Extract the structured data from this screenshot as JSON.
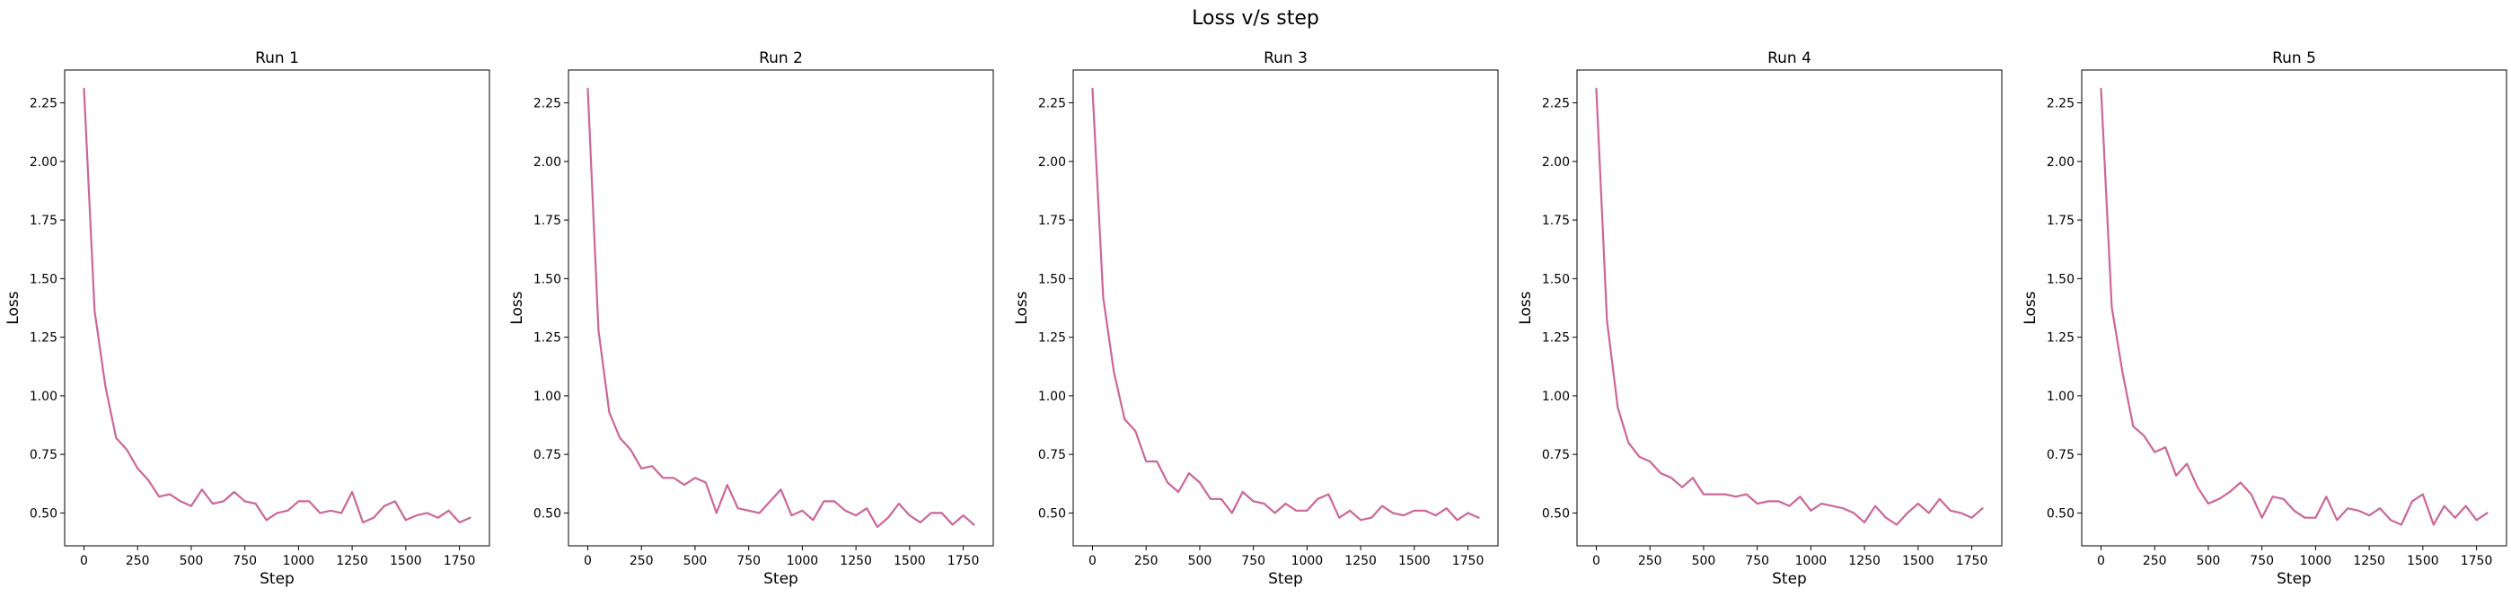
{
  "figure": {
    "title": "Loss v/s step",
    "line_color": "#cc6699"
  },
  "chart_data": [
    {
      "type": "line",
      "title": "Run 1",
      "xlabel": "Step",
      "ylabel": "Loss",
      "xlim": [
        -90,
        1890
      ],
      "ylim": [
        0.36,
        2.39
      ],
      "xticks": [
        0,
        250,
        500,
        750,
        1000,
        1250,
        1500,
        1750
      ],
      "yticks": [
        0.5,
        0.75,
        1.0,
        1.25,
        1.5,
        1.75,
        2.0,
        2.25
      ],
      "x": [
        0,
        50,
        100,
        150,
        200,
        250,
        300,
        350,
        400,
        450,
        500,
        550,
        600,
        650,
        700,
        750,
        800,
        850,
        900,
        950,
        1000,
        1050,
        1100,
        1150,
        1200,
        1250,
        1300,
        1350,
        1400,
        1450,
        1500,
        1550,
        1600,
        1650,
        1700,
        1750,
        1800
      ],
      "y": [
        2.31,
        1.36,
        1.04,
        0.82,
        0.77,
        0.69,
        0.64,
        0.57,
        0.58,
        0.55,
        0.53,
        0.6,
        0.54,
        0.55,
        0.59,
        0.55,
        0.54,
        0.47,
        0.5,
        0.51,
        0.55,
        0.55,
        0.5,
        0.51,
        0.5,
        0.59,
        0.46,
        0.48,
        0.53,
        0.55,
        0.47,
        0.49,
        0.5,
        0.48,
        0.51,
        0.46,
        0.48
      ]
    },
    {
      "type": "line",
      "title": "Run 2",
      "xlabel": "Step",
      "ylabel": "Loss",
      "xlim": [
        -90,
        1890
      ],
      "ylim": [
        0.36,
        2.39
      ],
      "xticks": [
        0,
        250,
        500,
        750,
        1000,
        1250,
        1500,
        1750
      ],
      "yticks": [
        0.5,
        0.75,
        1.0,
        1.25,
        1.5,
        1.75,
        2.0,
        2.25
      ],
      "x": [
        0,
        50,
        100,
        150,
        200,
        250,
        300,
        350,
        400,
        450,
        500,
        550,
        600,
        650,
        700,
        750,
        800,
        850,
        900,
        950,
        1000,
        1050,
        1100,
        1150,
        1200,
        1250,
        1300,
        1350,
        1400,
        1450,
        1500,
        1550,
        1600,
        1650,
        1700,
        1750,
        1800
      ],
      "y": [
        2.31,
        1.28,
        0.93,
        0.82,
        0.77,
        0.69,
        0.7,
        0.65,
        0.65,
        0.62,
        0.65,
        0.63,
        0.5,
        0.62,
        0.52,
        0.51,
        0.5,
        0.55,
        0.6,
        0.49,
        0.51,
        0.47,
        0.55,
        0.55,
        0.51,
        0.49,
        0.52,
        0.44,
        0.48,
        0.54,
        0.49,
        0.46,
        0.5,
        0.5,
        0.45,
        0.49,
        0.45
      ]
    },
    {
      "type": "line",
      "title": "Run 3",
      "xlabel": "Step",
      "ylabel": "Loss",
      "xlim": [
        -90,
        1890
      ],
      "ylim": [
        0.36,
        2.39
      ],
      "xticks": [
        0,
        250,
        500,
        750,
        1000,
        1250,
        1500,
        1750
      ],
      "yticks": [
        0.5,
        0.75,
        1.0,
        1.25,
        1.5,
        1.75,
        2.0,
        2.25
      ],
      "x": [
        0,
        50,
        100,
        150,
        200,
        250,
        300,
        350,
        400,
        450,
        500,
        550,
        600,
        650,
        700,
        750,
        800,
        850,
        900,
        950,
        1000,
        1050,
        1100,
        1150,
        1200,
        1250,
        1300,
        1350,
        1400,
        1450,
        1500,
        1550,
        1600,
        1650,
        1700,
        1750,
        1800
      ],
      "y": [
        2.31,
        1.42,
        1.1,
        0.9,
        0.85,
        0.72,
        0.72,
        0.63,
        0.59,
        0.67,
        0.63,
        0.56,
        0.56,
        0.5,
        0.59,
        0.55,
        0.54,
        0.5,
        0.54,
        0.51,
        0.51,
        0.56,
        0.58,
        0.48,
        0.51,
        0.47,
        0.48,
        0.53,
        0.5,
        0.49,
        0.51,
        0.51,
        0.49,
        0.52,
        0.47,
        0.5,
        0.48
      ]
    },
    {
      "type": "line",
      "title": "Run 4",
      "xlabel": "Step",
      "ylabel": "Loss",
      "xlim": [
        -90,
        1890
      ],
      "ylim": [
        0.36,
        2.39
      ],
      "xticks": [
        0,
        250,
        500,
        750,
        1000,
        1250,
        1500,
        1750
      ],
      "yticks": [
        0.5,
        0.75,
        1.0,
        1.25,
        1.5,
        1.75,
        2.0,
        2.25
      ],
      "x": [
        0,
        50,
        100,
        150,
        200,
        250,
        300,
        350,
        400,
        450,
        500,
        550,
        600,
        650,
        700,
        750,
        800,
        850,
        900,
        950,
        1000,
        1050,
        1100,
        1150,
        1200,
        1250,
        1300,
        1350,
        1400,
        1450,
        1500,
        1550,
        1600,
        1650,
        1700,
        1750,
        1800
      ],
      "y": [
        2.31,
        1.32,
        0.95,
        0.8,
        0.74,
        0.72,
        0.67,
        0.65,
        0.61,
        0.65,
        0.58,
        0.58,
        0.58,
        0.57,
        0.58,
        0.54,
        0.55,
        0.55,
        0.53,
        0.57,
        0.51,
        0.54,
        0.53,
        0.52,
        0.5,
        0.46,
        0.53,
        0.48,
        0.45,
        0.5,
        0.54,
        0.5,
        0.56,
        0.51,
        0.5,
        0.48,
        0.52
      ]
    },
    {
      "type": "line",
      "title": "Run 5",
      "xlabel": "Step",
      "ylabel": "Loss",
      "xlim": [
        -90,
        1890
      ],
      "ylim": [
        0.36,
        2.39
      ],
      "xticks": [
        0,
        250,
        500,
        750,
        1000,
        1250,
        1500,
        1750
      ],
      "yticks": [
        0.5,
        0.75,
        1.0,
        1.25,
        1.5,
        1.75,
        2.0,
        2.25
      ],
      "x": [
        0,
        50,
        100,
        150,
        200,
        250,
        300,
        350,
        400,
        450,
        500,
        550,
        600,
        650,
        700,
        750,
        800,
        850,
        900,
        950,
        1000,
        1050,
        1100,
        1150,
        1200,
        1250,
        1300,
        1350,
        1400,
        1450,
        1500,
        1550,
        1600,
        1650,
        1700,
        1750,
        1800
      ],
      "y": [
        2.31,
        1.38,
        1.1,
        0.87,
        0.83,
        0.76,
        0.78,
        0.66,
        0.71,
        0.61,
        0.54,
        0.56,
        0.59,
        0.63,
        0.58,
        0.48,
        0.57,
        0.56,
        0.51,
        0.48,
        0.48,
        0.57,
        0.47,
        0.52,
        0.51,
        0.49,
        0.52,
        0.47,
        0.45,
        0.55,
        0.58,
        0.45,
        0.53,
        0.48,
        0.53,
        0.47,
        0.5
      ]
    }
  ]
}
